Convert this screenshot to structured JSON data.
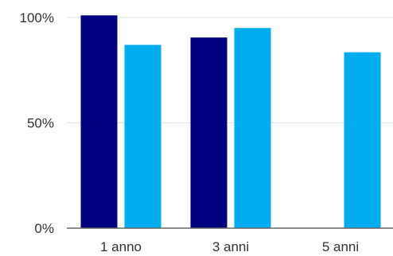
{
  "chart_data": {
    "type": "bar",
    "title": "",
    "xlabel": "",
    "ylabel": "",
    "categories": [
      "1 anno",
      "3 anni",
      "5 anni"
    ],
    "series": [
      {
        "color": "#000080",
        "values": [
          101,
          90.5,
          null
        ]
      },
      {
        "color": "#00AEEF",
        "values": [
          87,
          95,
          83.5
        ]
      }
    ],
    "ylim": [
      0,
      100
    ],
    "yticks": [
      {
        "value": 0,
        "label": "0%"
      },
      {
        "value": 50,
        "label": "50%"
      },
      {
        "value": 100,
        "label": "100%"
      }
    ],
    "grid": true,
    "gridColor": "#dde3ea",
    "axisColor": "#666666"
  }
}
